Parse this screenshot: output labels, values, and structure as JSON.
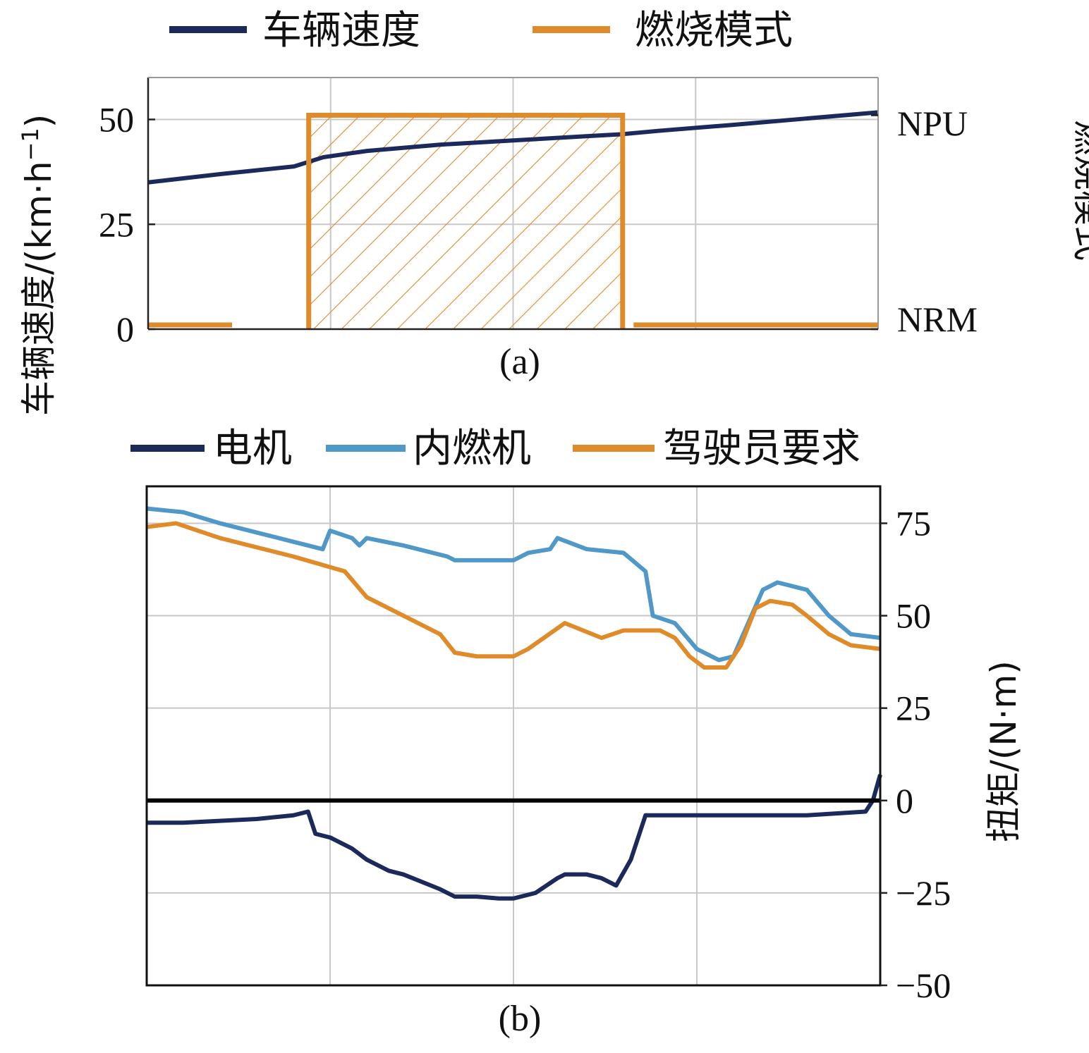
{
  "chart_data": [
    {
      "id": "a",
      "type": "line",
      "caption": "(a)",
      "legend": [
        {
          "name": "车辆速度",
          "color": "#1b2a5a"
        },
        {
          "name": "燃烧模式",
          "color": "#e08b2a"
        }
      ],
      "ylabel_left": "车辆速度/(km·h",
      "ylabel_left_sup": "−1",
      "ylabel_left_close": ")",
      "ylabel_right": "燃烧模式",
      "ylim": [
        0,
        60
      ],
      "yticks": [
        0,
        25,
        50
      ],
      "right_ticks": [
        "NRM",
        "NPU"
      ],
      "xlim": [
        0,
        1
      ],
      "x_gridlines": [
        0.25,
        0.5,
        0.75
      ],
      "series": [
        {
          "name": "车辆速度",
          "color": "#1b2a5a",
          "x": [
            0,
            0.1,
            0.2,
            0.24,
            0.3,
            0.4,
            0.5,
            0.6,
            0.65,
            0.7,
            0.8,
            0.9,
            1.0
          ],
          "y": [
            35,
            37,
            38.8,
            41,
            42.5,
            44,
            45,
            46,
            46.5,
            47.3,
            48.7,
            50.2,
            51.7
          ]
        },
        {
          "name": "燃烧模式",
          "color": "#e08b2a",
          "type": "step",
          "segments": [
            {
              "x": [
                0,
                0.115
              ],
              "y": [
                1,
                1
              ]
            },
            {
              "x": [
                0.22,
                0.22,
                0.65,
                0.65
              ],
              "y": [
                0,
                51,
                51,
                0
              ]
            },
            {
              "x": [
                0.665,
                1.0
              ],
              "y": [
                1,
                1
              ]
            }
          ],
          "hatch_region": {
            "x": [
              0.22,
              0.65
            ],
            "y": [
              0,
              51
            ]
          }
        }
      ]
    },
    {
      "id": "b",
      "type": "line",
      "caption": "(b)",
      "legend": [
        {
          "name": "电机",
          "color": "#1b2a5a"
        },
        {
          "name": "内燃机",
          "color": "#4f98c8"
        },
        {
          "name": "驾驶员要求",
          "color": "#e08b2a"
        }
      ],
      "ylabel_right": "扭矩/(N·m)",
      "ylim": [
        -50,
        85
      ],
      "yticks": [
        -50,
        -25,
        0,
        25,
        50,
        75
      ],
      "ytick_labels": [
        "−50",
        "−25",
        "0",
        "25",
        "50",
        "75"
      ],
      "xlim": [
        0,
        1
      ],
      "x_gridlines": [
        0.25,
        0.5,
        0.75
      ],
      "series": [
        {
          "name": "内燃机",
          "color": "#4f98c8",
          "x": [
            0,
            0.05,
            0.1,
            0.2,
            0.24,
            0.25,
            0.28,
            0.29,
            0.3,
            0.35,
            0.41,
            0.42,
            0.5,
            0.52,
            0.55,
            0.56,
            0.6,
            0.65,
            0.68,
            0.69,
            0.72,
            0.75,
            0.78,
            0.8,
            0.82,
            0.84,
            0.86,
            0.9,
            0.93,
            0.96,
            1.0
          ],
          "y": [
            79,
            78,
            75,
            70,
            68,
            73,
            71,
            69,
            71,
            69,
            66,
            65,
            65,
            67,
            68,
            71,
            68,
            67,
            62,
            50,
            48,
            41,
            38,
            39,
            48,
            57,
            59,
            57,
            50,
            45,
            44
          ]
        },
        {
          "name": "驾驶员要求",
          "color": "#e08b2a",
          "x": [
            0,
            0.04,
            0.1,
            0.2,
            0.27,
            0.3,
            0.35,
            0.4,
            0.42,
            0.45,
            0.5,
            0.52,
            0.57,
            0.62,
            0.65,
            0.7,
            0.72,
            0.74,
            0.76,
            0.79,
            0.81,
            0.83,
            0.85,
            0.88,
            0.9,
            0.93,
            0.96,
            1.0
          ],
          "y": [
            74,
            75,
            71,
            66,
            62,
            55,
            50,
            45,
            40,
            39,
            39,
            41,
            48,
            44,
            46,
            46,
            44,
            39,
            36,
            36,
            42,
            52,
            54,
            53,
            50,
            45,
            42,
            41
          ]
        },
        {
          "name": "电机",
          "color": "#1b2a5a",
          "x": [
            0,
            0.05,
            0.1,
            0.15,
            0.2,
            0.22,
            0.23,
            0.25,
            0.28,
            0.3,
            0.33,
            0.35,
            0.4,
            0.42,
            0.45,
            0.48,
            0.5,
            0.53,
            0.56,
            0.57,
            0.6,
            0.62,
            0.64,
            0.66,
            0.68,
            0.7,
            0.8,
            0.9,
            0.98,
            0.99,
            1.0
          ],
          "y": [
            -6,
            -6,
            -5.5,
            -5,
            -4,
            -3,
            -9,
            -10,
            -13,
            -16,
            -19,
            -20,
            -24,
            -26,
            -26,
            -26.5,
            -26.5,
            -25,
            -21,
            -20,
            -20,
            -21,
            -23,
            -16,
            -4,
            -4,
            -4,
            -4,
            -3,
            0,
            7
          ]
        },
        {
          "name": "zero-reference",
          "color": "#000000",
          "x": [
            0,
            1
          ],
          "y": [
            0,
            0
          ]
        }
      ]
    }
  ]
}
